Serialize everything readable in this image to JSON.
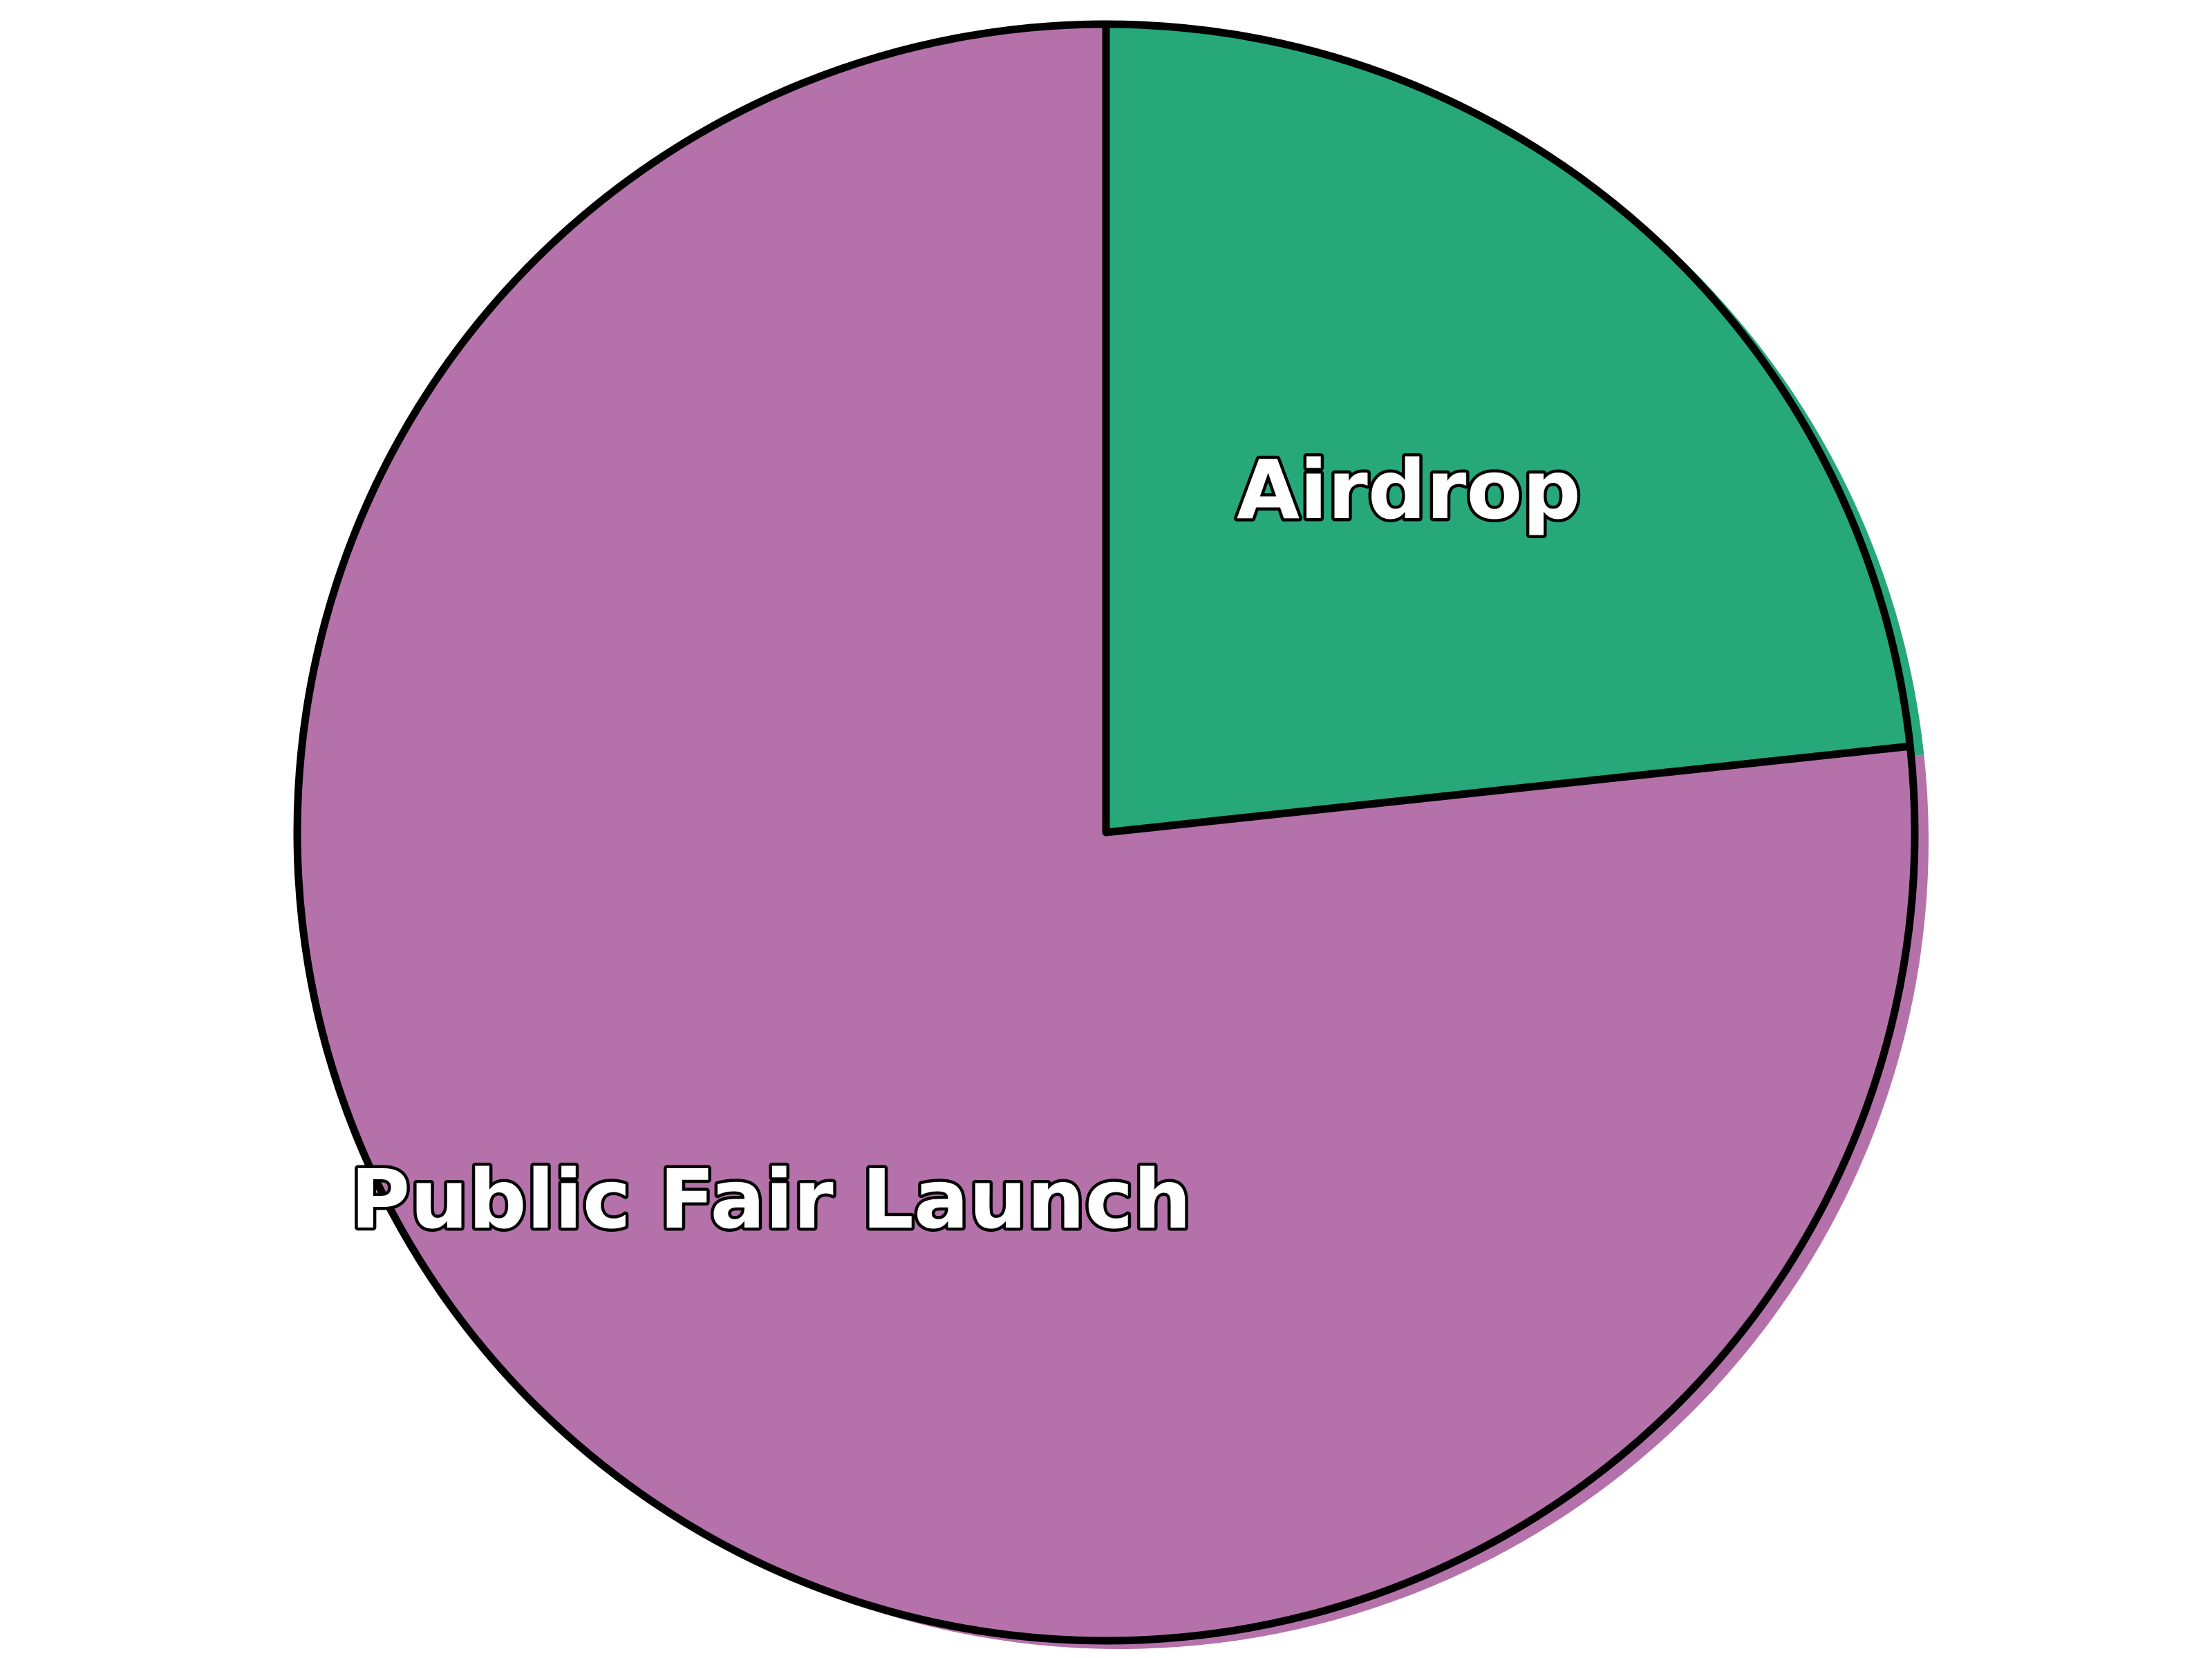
{
  "chart_data": {
    "type": "pie",
    "title": "",
    "start_angle": "12 o'clock",
    "direction": "clockwise",
    "slices": [
      {
        "label": "Airdrop",
        "value": 23.3,
        "color": "#26a87b"
      },
      {
        "label": "Public Fair Launch",
        "value": 76.7,
        "color": "#b572aa"
      }
    ],
    "outline_color": "#000000",
    "background_color": "#ffffff"
  }
}
